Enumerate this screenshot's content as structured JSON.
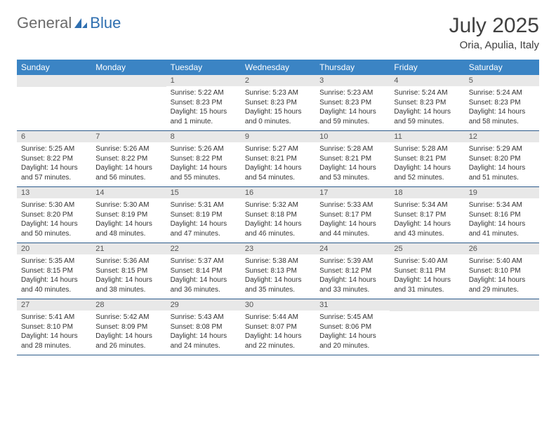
{
  "logo": {
    "text_general": "General",
    "text_blue": "Blue",
    "icon_color": "#2f6fb0"
  },
  "title": "July 2025",
  "location": "Oria, Apulia, Italy",
  "colors": {
    "header_bg": "#3b84c4",
    "header_text": "#ffffff",
    "daynum_bg": "#e8e8e8",
    "daynum_text": "#555555",
    "body_text": "#333333",
    "row_border": "#2b5a8a",
    "title_text": "#404040"
  },
  "weekdays": [
    "Sunday",
    "Monday",
    "Tuesday",
    "Wednesday",
    "Thursday",
    "Friday",
    "Saturday"
  ],
  "weeks": [
    [
      null,
      null,
      {
        "n": "1",
        "sr": "5:22 AM",
        "ss": "8:23 PM",
        "dl": "15 hours and 1 minute."
      },
      {
        "n": "2",
        "sr": "5:23 AM",
        "ss": "8:23 PM",
        "dl": "15 hours and 0 minutes."
      },
      {
        "n": "3",
        "sr": "5:23 AM",
        "ss": "8:23 PM",
        "dl": "14 hours and 59 minutes."
      },
      {
        "n": "4",
        "sr": "5:24 AM",
        "ss": "8:23 PM",
        "dl": "14 hours and 59 minutes."
      },
      {
        "n": "5",
        "sr": "5:24 AM",
        "ss": "8:23 PM",
        "dl": "14 hours and 58 minutes."
      }
    ],
    [
      {
        "n": "6",
        "sr": "5:25 AM",
        "ss": "8:22 PM",
        "dl": "14 hours and 57 minutes."
      },
      {
        "n": "7",
        "sr": "5:26 AM",
        "ss": "8:22 PM",
        "dl": "14 hours and 56 minutes."
      },
      {
        "n": "8",
        "sr": "5:26 AM",
        "ss": "8:22 PM",
        "dl": "14 hours and 55 minutes."
      },
      {
        "n": "9",
        "sr": "5:27 AM",
        "ss": "8:21 PM",
        "dl": "14 hours and 54 minutes."
      },
      {
        "n": "10",
        "sr": "5:28 AM",
        "ss": "8:21 PM",
        "dl": "14 hours and 53 minutes."
      },
      {
        "n": "11",
        "sr": "5:28 AM",
        "ss": "8:21 PM",
        "dl": "14 hours and 52 minutes."
      },
      {
        "n": "12",
        "sr": "5:29 AM",
        "ss": "8:20 PM",
        "dl": "14 hours and 51 minutes."
      }
    ],
    [
      {
        "n": "13",
        "sr": "5:30 AM",
        "ss": "8:20 PM",
        "dl": "14 hours and 50 minutes."
      },
      {
        "n": "14",
        "sr": "5:30 AM",
        "ss": "8:19 PM",
        "dl": "14 hours and 48 minutes."
      },
      {
        "n": "15",
        "sr": "5:31 AM",
        "ss": "8:19 PM",
        "dl": "14 hours and 47 minutes."
      },
      {
        "n": "16",
        "sr": "5:32 AM",
        "ss": "8:18 PM",
        "dl": "14 hours and 46 minutes."
      },
      {
        "n": "17",
        "sr": "5:33 AM",
        "ss": "8:17 PM",
        "dl": "14 hours and 44 minutes."
      },
      {
        "n": "18",
        "sr": "5:34 AM",
        "ss": "8:17 PM",
        "dl": "14 hours and 43 minutes."
      },
      {
        "n": "19",
        "sr": "5:34 AM",
        "ss": "8:16 PM",
        "dl": "14 hours and 41 minutes."
      }
    ],
    [
      {
        "n": "20",
        "sr": "5:35 AM",
        "ss": "8:15 PM",
        "dl": "14 hours and 40 minutes."
      },
      {
        "n": "21",
        "sr": "5:36 AM",
        "ss": "8:15 PM",
        "dl": "14 hours and 38 minutes."
      },
      {
        "n": "22",
        "sr": "5:37 AM",
        "ss": "8:14 PM",
        "dl": "14 hours and 36 minutes."
      },
      {
        "n": "23",
        "sr": "5:38 AM",
        "ss": "8:13 PM",
        "dl": "14 hours and 35 minutes."
      },
      {
        "n": "24",
        "sr": "5:39 AM",
        "ss": "8:12 PM",
        "dl": "14 hours and 33 minutes."
      },
      {
        "n": "25",
        "sr": "5:40 AM",
        "ss": "8:11 PM",
        "dl": "14 hours and 31 minutes."
      },
      {
        "n": "26",
        "sr": "5:40 AM",
        "ss": "8:10 PM",
        "dl": "14 hours and 29 minutes."
      }
    ],
    [
      {
        "n": "27",
        "sr": "5:41 AM",
        "ss": "8:10 PM",
        "dl": "14 hours and 28 minutes."
      },
      {
        "n": "28",
        "sr": "5:42 AM",
        "ss": "8:09 PM",
        "dl": "14 hours and 26 minutes."
      },
      {
        "n": "29",
        "sr": "5:43 AM",
        "ss": "8:08 PM",
        "dl": "14 hours and 24 minutes."
      },
      {
        "n": "30",
        "sr": "5:44 AM",
        "ss": "8:07 PM",
        "dl": "14 hours and 22 minutes."
      },
      {
        "n": "31",
        "sr": "5:45 AM",
        "ss": "8:06 PM",
        "dl": "14 hours and 20 minutes."
      },
      null,
      null
    ]
  ],
  "labels": {
    "sunrise": "Sunrise:",
    "sunset": "Sunset:",
    "daylight": "Daylight:"
  }
}
